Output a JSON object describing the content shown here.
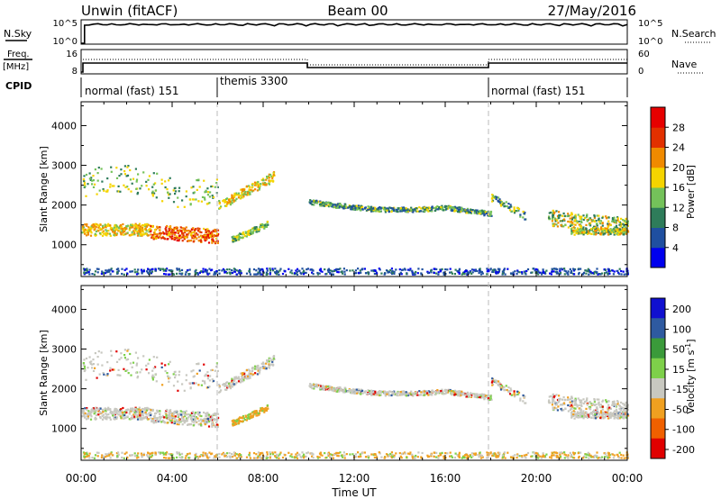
{
  "header": {
    "station": "Unwin (fitACF)",
    "beam": "Beam 00",
    "date": "27/May/2016"
  },
  "summary": {
    "nsky_label": "N.Sky",
    "nsearch_label": "N.Search",
    "freq_label": "Freq.",
    "freq_unit": "[MHz]",
    "nave_label": "Nave",
    "cpid_label": "CPID",
    "nsky_ticks": [
      "10^5",
      "10^0"
    ],
    "nsearch_ticks": [
      "10^5",
      "10^0"
    ],
    "freq_ticks": [
      "16",
      "8"
    ],
    "nave_ticks": [
      "60",
      "0"
    ],
    "cpid_segments": [
      {
        "label": "normal (fast) 151",
        "start_hour": 0,
        "end_hour": 6
      },
      {
        "label": "themis 3300",
        "start_hour": 6,
        "end_hour": 18
      },
      {
        "label": "normal (fast) 151",
        "start_hour": 18,
        "end_hour": 24
      }
    ]
  },
  "chart_data": [
    {
      "type": "heatmap",
      "name": "Power",
      "ylabel": "Slant Range [km]",
      "yticks": [
        "4000",
        "3000",
        "2000",
        "1000"
      ],
      "ylim": [
        200,
        4600
      ],
      "colorbar_label": "Power [dB]",
      "colorbar_ticks": [
        "28",
        "24",
        "20",
        "16",
        "12",
        "8",
        "4"
      ],
      "colors": [
        "#0000ee",
        "#1f4fa0",
        "#2e7c5a",
        "#74c25a",
        "#f5d400",
        "#f08a00",
        "#e23000",
        "#e60000"
      ]
    },
    {
      "type": "heatmap",
      "name": "Velocity",
      "ylabel": "Slant Range [km]",
      "yticks": [
        "4000",
        "3000",
        "2000",
        "1000"
      ],
      "ylim": [
        200,
        4600
      ],
      "colorbar_label": "Velocity [m s^-1]",
      "colorbar_ticks": [
        "200",
        "100",
        "50",
        "15",
        "-15",
        "-50",
        "-100",
        "-200"
      ],
      "colors": [
        "#1010d0",
        "#2e5aa0",
        "#3a9a3a",
        "#7ed04a",
        "#c8c8c0",
        "#f0a020",
        "#f06000",
        "#e00000"
      ]
    }
  ],
  "xaxis": {
    "label": "Time UT",
    "ticks": [
      "00:00",
      "04:00",
      "08:00",
      "12:00",
      "16:00",
      "20:00",
      "00:00"
    ]
  }
}
